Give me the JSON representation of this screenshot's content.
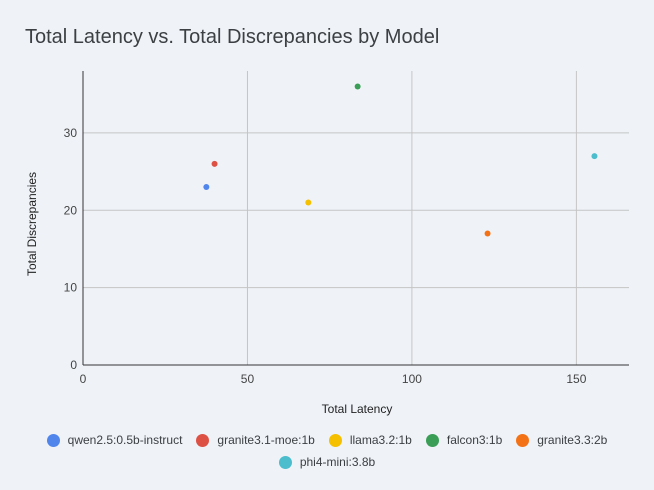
{
  "chart_data": {
    "type": "scatter",
    "title": "Total Latency vs. Total Discrepancies by Model",
    "xlabel": "Total Latency",
    "ylabel": "Total Discrepancies",
    "xlim": [
      0,
      166
    ],
    "ylim": [
      0,
      38
    ],
    "x_ticks": [
      0,
      50,
      100,
      150
    ],
    "y_ticks": [
      0,
      10,
      20,
      30
    ],
    "grid": true,
    "legend_position": "bottom",
    "series": [
      {
        "name": "qwen2.5:0.5b-instruct",
        "color": "#5086ec",
        "points": [
          {
            "x": 37.5,
            "y": 23
          }
        ]
      },
      {
        "name": "granite3.1-moe:1b",
        "color": "#dd5144",
        "points": [
          {
            "x": 40,
            "y": 26
          }
        ]
      },
      {
        "name": "llama3.2:1b",
        "color": "#f5c000",
        "points": [
          {
            "x": 68.5,
            "y": 21
          }
        ]
      },
      {
        "name": "falcon3:1b",
        "color": "#3a9e56",
        "points": [
          {
            "x": 83.5,
            "y": 36
          }
        ]
      },
      {
        "name": "granite3.3:2b",
        "color": "#f47216",
        "points": [
          {
            "x": 123,
            "y": 17
          }
        ]
      },
      {
        "name": "phi4-mini:3.8b",
        "color": "#4bbdcc",
        "points": [
          {
            "x": 155.5,
            "y": 27
          }
        ]
      }
    ]
  }
}
